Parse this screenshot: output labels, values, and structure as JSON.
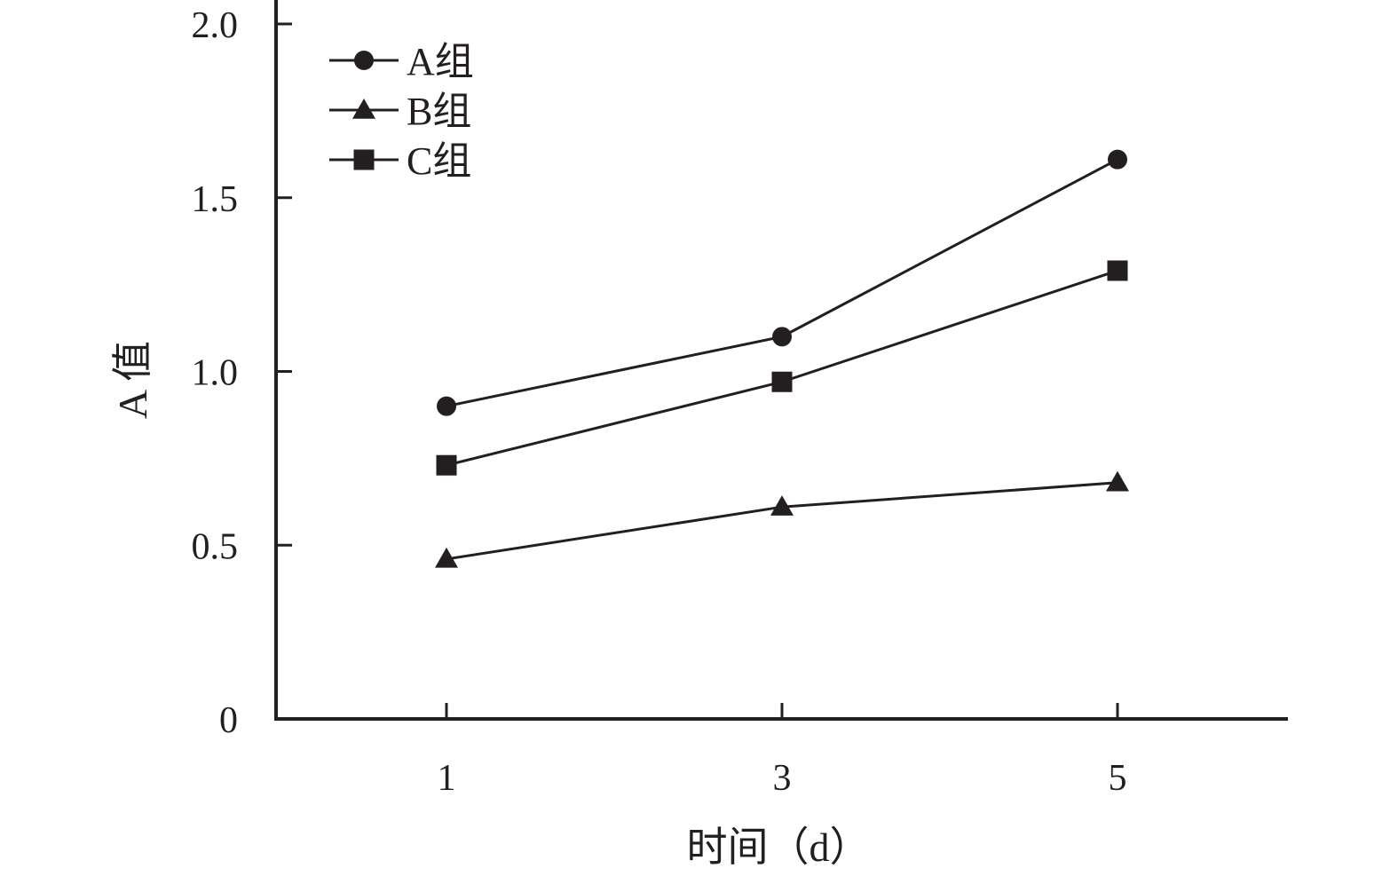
{
  "chart_data": {
    "type": "line",
    "title": "",
    "xlabel": "时间（d）",
    "ylabel": "A 值",
    "x": [
      1,
      3,
      5
    ],
    "x_tick_labels": [
      "1",
      "3",
      "5"
    ],
    "ylim": [
      0,
      2.0
    ],
    "y_ticks": [
      0,
      0.5,
      1.0,
      1.5,
      2.0
    ],
    "y_tick_labels": [
      "0",
      "0.5",
      "1.0",
      "1.5",
      "2.0"
    ],
    "grid": false,
    "legend_position": "top-left",
    "series": [
      {
        "name": "A组",
        "marker": "circle",
        "values": [
          0.9,
          1.1,
          1.61
        ]
      },
      {
        "name": "B组",
        "marker": "triangle",
        "values": [
          0.46,
          0.61,
          0.68
        ]
      },
      {
        "name": "C组",
        "marker": "square",
        "values": [
          0.73,
          0.97,
          1.29
        ]
      }
    ],
    "colors": {
      "ink": "#231f20"
    }
  }
}
